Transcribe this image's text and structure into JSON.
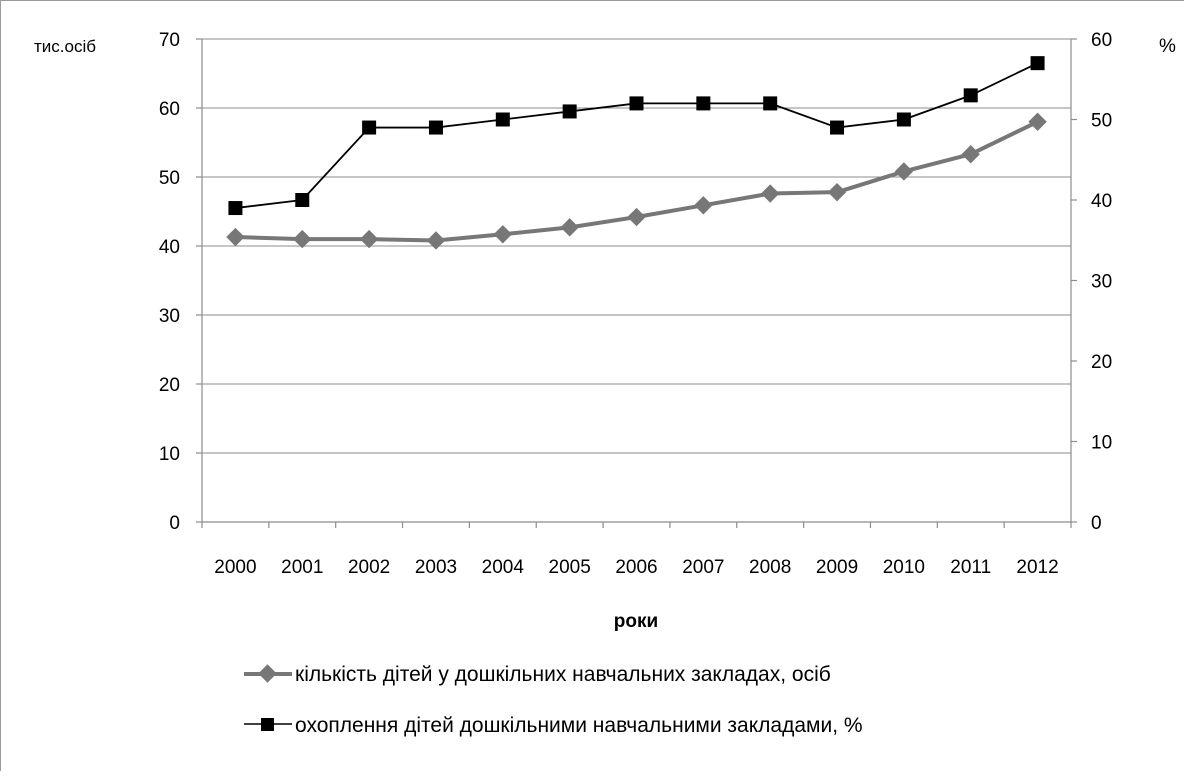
{
  "chart_data": {
    "type": "line",
    "title": "",
    "xlabel": "роки",
    "y_left_unit": "тис.осіб",
    "y_right_unit": "%",
    "x": [
      "2000",
      "2001",
      "2002",
      "2003",
      "2004",
      "2005",
      "2006",
      "2007",
      "2008",
      "2009",
      "2010",
      "2011",
      "2012"
    ],
    "y_left": {
      "min": 0,
      "max": 70,
      "ticks": [
        0,
        10,
        20,
        30,
        40,
        50,
        60,
        70
      ]
    },
    "y_right": {
      "min": 0,
      "max": 60,
      "ticks": [
        0,
        10,
        20,
        30,
        40,
        50,
        60
      ]
    },
    "grid": true,
    "legend_position": "bottom",
    "series": [
      {
        "name": "кількість дітей у дошкільних навчальних закладах, осіб",
        "axis": "left",
        "marker": "diamond",
        "color": "#777777",
        "values": [
          41.3,
          41.0,
          41.0,
          40.8,
          41.7,
          42.7,
          44.2,
          45.9,
          47.6,
          47.8,
          50.8,
          53.3,
          58.0
        ]
      },
      {
        "name": "охоплення дітей дошкільними навчальними закладами, %",
        "axis": "right",
        "marker": "square",
        "color": "#000000",
        "values": [
          39,
          40,
          49,
          49,
          50,
          51,
          52,
          52,
          52,
          49,
          50,
          53,
          57
        ]
      }
    ]
  }
}
